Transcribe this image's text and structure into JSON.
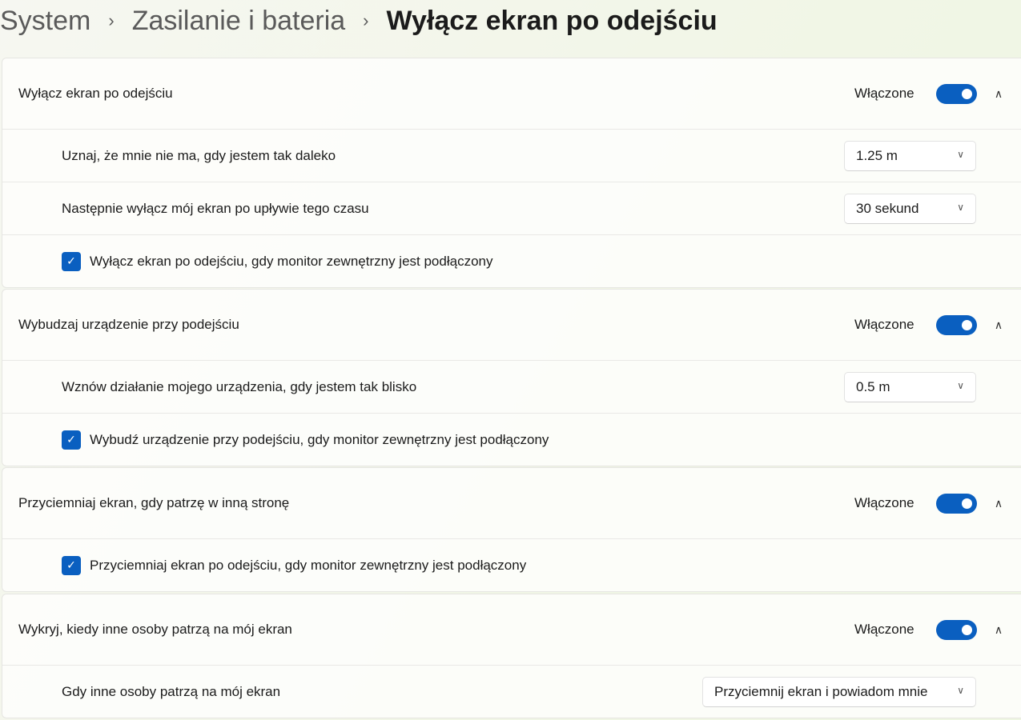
{
  "breadcrumb": {
    "items": [
      "System",
      "Zasilanie i bateria"
    ],
    "current": "Wyłącz ekran po odejściu"
  },
  "accent": "#0a5fc0",
  "groups": [
    {
      "title": "Wyłącz ekran po odejściu",
      "state": "Włączone",
      "on": true,
      "rows": [
        {
          "label": "Uznaj, że mnie nie ma, gdy jestem tak daleko",
          "value": "1.25 m"
        },
        {
          "label": "Następnie wyłącz mój ekran po upływie tego czasu",
          "value": "30 sekund"
        },
        {
          "checkbox": "Wyłącz ekran po odejściu, gdy monitor zewnętrzny jest podłączony",
          "checked": true
        }
      ]
    },
    {
      "title": "Wybudzaj urządzenie przy podejściu",
      "state": "Włączone",
      "on": true,
      "rows": [
        {
          "label": "Wznów działanie mojego urządzenia, gdy jestem tak blisko",
          "value": "0.5 m"
        },
        {
          "checkbox": "Wybudź urządzenie przy podejściu, gdy monitor zewnętrzny jest podłączony",
          "checked": true
        }
      ]
    },
    {
      "title": "Przyciemniaj ekran, gdy patrzę w inną stronę",
      "state": "Włączone",
      "on": true,
      "rows": [
        {
          "checkbox": "Przyciemniaj ekran po odejściu, gdy monitor zewnętrzny jest podłączony",
          "checked": true
        }
      ]
    },
    {
      "title": "Wykryj, kiedy inne osoby patrzą na mój ekran",
      "state": "Włączone",
      "on": true,
      "rows": [
        {
          "label": "Gdy inne osoby patrzą na mój ekran",
          "value": "Przyciemnij ekran i powiadom mnie"
        }
      ]
    }
  ]
}
